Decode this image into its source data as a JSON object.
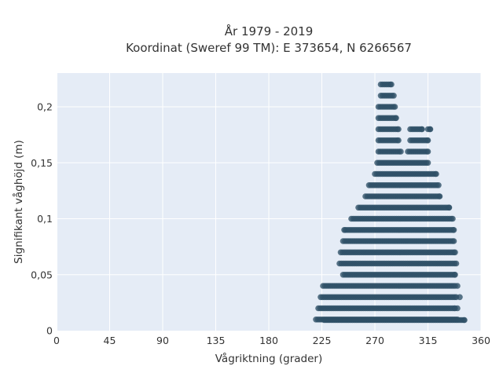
{
  "chart_data": {
    "type": "scatter",
    "title_line1": "År 1979 - 2019",
    "title_line2": "Koordinat (Sweref 99 TM): E 373654, N 6266567",
    "xlabel": "Vågriktning (grader)",
    "ylabel": "Signifikant våghöjd (m)",
    "xlim": [
      0,
      360
    ],
    "ylim": [
      0,
      0.23
    ],
    "x_ticks": [
      0,
      45,
      90,
      135,
      180,
      225,
      270,
      315,
      360
    ],
    "x_tick_labels": [
      "0",
      "45",
      "90",
      "135",
      "180",
      "225",
      "270",
      "315",
      "360"
    ],
    "y_ticks": [
      0,
      0.05,
      0.1,
      0.15,
      0.2
    ],
    "y_tick_labels": [
      "0",
      "0,05",
      "0,1",
      "0,15",
      "0,2"
    ],
    "grid": true,
    "marker_color": "#2e5066",
    "plot_background": "#e5ecf6",
    "bands": [
      {
        "y": 0.22,
        "x_min": 275,
        "x_max": 284
      },
      {
        "y": 0.21,
        "x_min": 275,
        "x_max": 286
      },
      {
        "y": 0.2,
        "x_min": 273,
        "x_max": 287
      },
      {
        "y": 0.19,
        "x_min": 273,
        "x_max": 288
      },
      {
        "y": 0.18,
        "x_min": 273,
        "x_max": 290,
        "extra": [
          [
            300,
            310
          ],
          [
            315,
            317
          ]
        ]
      },
      {
        "y": 0.17,
        "x_min": 273,
        "x_max": 290,
        "extra": [
          [
            300,
            315
          ]
        ]
      },
      {
        "y": 0.16,
        "x_min": 273,
        "x_max": 292,
        "extra": [
          [
            298,
            315
          ]
        ]
      },
      {
        "y": 0.15,
        "x_min": 272,
        "x_max": 315
      },
      {
        "y": 0.14,
        "x_min": 270,
        "x_max": 322
      },
      {
        "y": 0.13,
        "x_min": 265,
        "x_max": 324
      },
      {
        "y": 0.12,
        "x_min": 262,
        "x_max": 325
      },
      {
        "y": 0.11,
        "x_min": 256,
        "x_max": 333
      },
      {
        "y": 0.1,
        "x_min": 250,
        "x_max": 336
      },
      {
        "y": 0.09,
        "x_min": 245,
        "x_max": 337
      },
      {
        "y": 0.08,
        "x_min": 243,
        "x_max": 337
      },
      {
        "y": 0.07,
        "x_min": 241,
        "x_max": 338
      },
      {
        "y": 0.06,
        "x_min": 240,
        "x_max": 339
      },
      {
        "y": 0.05,
        "x_min": 243,
        "x_max": 338
      },
      {
        "y": 0.04,
        "x_min": 226,
        "x_max": 338
      },
      {
        "y": 0.03,
        "x_min": 224,
        "x_max": 339
      },
      {
        "y": 0.02,
        "x_min": 222,
        "x_max": 338
      },
      {
        "y": 0.01,
        "x_min": 220,
        "x_max": 340
      },
      {
        "y": 0.0,
        "x_min": 227,
        "x_max": 346
      }
    ],
    "outliers": [
      [
        244,
        0.09
      ],
      [
        340,
        0.04
      ],
      [
        342,
        0.03
      ],
      [
        340,
        0.02
      ]
    ]
  }
}
